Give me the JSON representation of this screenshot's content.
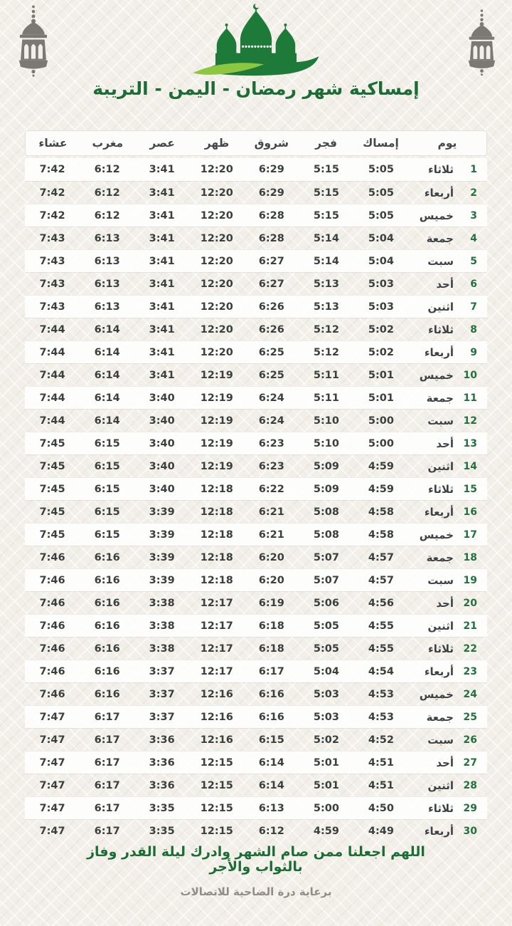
{
  "header": {
    "title": "إمساكية شهر رمضان - اليمن - التريبة"
  },
  "icons": {
    "left": "lantern-icon",
    "right": "lantern-icon",
    "logo": "mosque-icon"
  },
  "colors": {
    "primary_green": "#1e7a38",
    "accent_light_green": "#8dc63f",
    "title_green": "#1c6d35",
    "day_number_green": "#23713e",
    "text_dark": "#3a403e",
    "icon_gray": "#7c7974",
    "background": "#f2efe8",
    "header_row_bg": "#fcfcfb"
  },
  "table": {
    "headers": [
      "يوم",
      "إمساك",
      "فجر",
      "شروق",
      "ظهر",
      "عصر",
      "مغرب",
      "عشاء"
    ],
    "rows": [
      {
        "day": 1,
        "name": "ثلاثاء",
        "times": [
          "5:05",
          "5:15",
          "6:29",
          "12:20",
          "3:41",
          "6:12",
          "7:42"
        ]
      },
      {
        "day": 2,
        "name": "أربعاء",
        "times": [
          "5:05",
          "5:15",
          "6:29",
          "12:20",
          "3:41",
          "6:12",
          "7:42"
        ]
      },
      {
        "day": 3,
        "name": "خميس",
        "times": [
          "5:05",
          "5:15",
          "6:28",
          "12:20",
          "3:41",
          "6:12",
          "7:42"
        ]
      },
      {
        "day": 4,
        "name": "جمعة",
        "times": [
          "5:04",
          "5:14",
          "6:28",
          "12:20",
          "3:41",
          "6:13",
          "7:43"
        ]
      },
      {
        "day": 5,
        "name": "سبت",
        "times": [
          "5:04",
          "5:14",
          "6:27",
          "12:20",
          "3:41",
          "6:13",
          "7:43"
        ]
      },
      {
        "day": 6,
        "name": "أحد",
        "times": [
          "5:03",
          "5:13",
          "6:27",
          "12:20",
          "3:41",
          "6:13",
          "7:43"
        ]
      },
      {
        "day": 7,
        "name": "اثنين",
        "times": [
          "5:03",
          "5:13",
          "6:26",
          "12:20",
          "3:41",
          "6:13",
          "7:43"
        ]
      },
      {
        "day": 8,
        "name": "ثلاثاء",
        "times": [
          "5:02",
          "5:12",
          "6:26",
          "12:20",
          "3:41",
          "6:14",
          "7:44"
        ]
      },
      {
        "day": 9,
        "name": "أربعاء",
        "times": [
          "5:02",
          "5:12",
          "6:25",
          "12:20",
          "3:41",
          "6:14",
          "7:44"
        ]
      },
      {
        "day": 10,
        "name": "خميس",
        "times": [
          "5:01",
          "5:11",
          "6:25",
          "12:19",
          "3:41",
          "6:14",
          "7:44"
        ]
      },
      {
        "day": 11,
        "name": "جمعة",
        "times": [
          "5:01",
          "5:11",
          "6:24",
          "12:19",
          "3:40",
          "6:14",
          "7:44"
        ]
      },
      {
        "day": 12,
        "name": "سبت",
        "times": [
          "5:00",
          "5:10",
          "6:24",
          "12:19",
          "3:40",
          "6:14",
          "7:44"
        ]
      },
      {
        "day": 13,
        "name": "أحد",
        "times": [
          "5:00",
          "5:10",
          "6:23",
          "12:19",
          "3:40",
          "6:15",
          "7:45"
        ]
      },
      {
        "day": 14,
        "name": "اثنين",
        "times": [
          "4:59",
          "5:09",
          "6:23",
          "12:19",
          "3:40",
          "6:15",
          "7:45"
        ]
      },
      {
        "day": 15,
        "name": "ثلاثاء",
        "times": [
          "4:59",
          "5:09",
          "6:22",
          "12:18",
          "3:40",
          "6:15",
          "7:45"
        ]
      },
      {
        "day": 16,
        "name": "أربعاء",
        "times": [
          "4:58",
          "5:08",
          "6:21",
          "12:18",
          "3:39",
          "6:15",
          "7:45"
        ]
      },
      {
        "day": 17,
        "name": "خميس",
        "times": [
          "4:58",
          "5:08",
          "6:21",
          "12:18",
          "3:39",
          "6:15",
          "7:45"
        ]
      },
      {
        "day": 18,
        "name": "جمعة",
        "times": [
          "4:57",
          "5:07",
          "6:20",
          "12:18",
          "3:39",
          "6:16",
          "7:46"
        ]
      },
      {
        "day": 19,
        "name": "سبت",
        "times": [
          "4:57",
          "5:07",
          "6:20",
          "12:18",
          "3:39",
          "6:16",
          "7:46"
        ]
      },
      {
        "day": 20,
        "name": "أحد",
        "times": [
          "4:56",
          "5:06",
          "6:19",
          "12:17",
          "3:38",
          "6:16",
          "7:46"
        ]
      },
      {
        "day": 21,
        "name": "اثنين",
        "times": [
          "4:55",
          "5:05",
          "6:18",
          "12:17",
          "3:38",
          "6:16",
          "7:46"
        ]
      },
      {
        "day": 22,
        "name": "ثلاثاء",
        "times": [
          "4:55",
          "5:05",
          "6:18",
          "12:17",
          "3:38",
          "6:16",
          "7:46"
        ]
      },
      {
        "day": 23,
        "name": "أربعاء",
        "times": [
          "4:54",
          "5:04",
          "6:17",
          "12:17",
          "3:37",
          "6:16",
          "7:46"
        ]
      },
      {
        "day": 24,
        "name": "خميس",
        "times": [
          "4:53",
          "5:03",
          "6:16",
          "12:16",
          "3:37",
          "6:16",
          "7:46"
        ]
      },
      {
        "day": 25,
        "name": "جمعة",
        "times": [
          "4:53",
          "5:03",
          "6:16",
          "12:16",
          "3:37",
          "6:17",
          "7:47"
        ]
      },
      {
        "day": 26,
        "name": "سبت",
        "times": [
          "4:52",
          "5:02",
          "6:15",
          "12:16",
          "3:36",
          "6:17",
          "7:47"
        ]
      },
      {
        "day": 27,
        "name": "أحد",
        "times": [
          "4:51",
          "5:01",
          "6:14",
          "12:15",
          "3:36",
          "6:17",
          "7:47"
        ]
      },
      {
        "day": 28,
        "name": "اثنين",
        "times": [
          "4:51",
          "5:01",
          "6:14",
          "12:15",
          "3:36",
          "6:17",
          "7:47"
        ]
      },
      {
        "day": 29,
        "name": "ثلاثاء",
        "times": [
          "4:50",
          "5:00",
          "6:13",
          "12:15",
          "3:35",
          "6:17",
          "7:47"
        ]
      },
      {
        "day": 30,
        "name": "أربعاء",
        "times": [
          "4:49",
          "4:59",
          "6:12",
          "12:15",
          "3:35",
          "6:17",
          "7:47"
        ]
      }
    ]
  },
  "footer": {
    "dua": "اللهم اجعلنا ممن صام الشهر وادرك ليلة القدر وفاز بالثواب والأجر",
    "sponsor": "برعاية درة الضاحية للاتصالات"
  }
}
